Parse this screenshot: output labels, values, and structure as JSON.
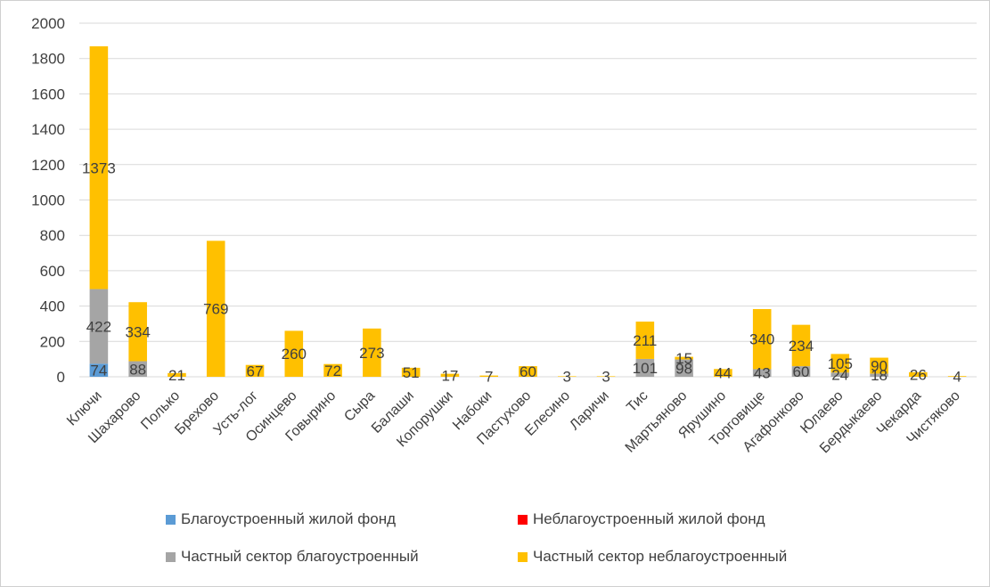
{
  "chart_data": {
    "type": "bar",
    "stacked": true,
    "title": "",
    "xlabel": "",
    "ylabel": "",
    "ylim": [
      0,
      2000
    ],
    "yticks": [
      0,
      200,
      400,
      600,
      800,
      1000,
      1200,
      1400,
      1600,
      1800,
      2000
    ],
    "grid": true,
    "legend_position": "bottom",
    "categories": [
      "Ключи",
      "Шахарово",
      "Полько",
      "Брехово",
      "Усть-лог",
      "Осинцево",
      "Говырино",
      "Сыра",
      "Балаши",
      "Копорушки",
      "Набоки",
      "Пастухово",
      "Елесино",
      "Ларичи",
      "Тис",
      "Мартьяново",
      "Ярушино",
      "Торговище",
      "Агафонково",
      "Юлаево",
      "Бердыкаево",
      "Чекарда",
      "Чистяково"
    ],
    "series": [
      {
        "name": "Благоустроенный жилой фонд",
        "color": "#5b9bd5",
        "values": [
          74,
          null,
          null,
          null,
          null,
          null,
          null,
          null,
          null,
          null,
          null,
          null,
          null,
          null,
          null,
          null,
          null,
          null,
          null,
          null,
          null,
          null,
          null
        ],
        "labels": [
          "74",
          "",
          "",
          "",
          "",
          "",
          "",
          "",
          "",
          "",
          "",
          "",
          "",
          "",
          "",
          "",
          "",
          "",
          "",
          "",
          "",
          "",
          ""
        ]
      },
      {
        "name": "Неблагоустроенный  жилой фонд",
        "color": "#ff0000",
        "values": [
          null,
          null,
          null,
          null,
          null,
          null,
          null,
          null,
          null,
          null,
          null,
          null,
          null,
          null,
          null,
          null,
          null,
          null,
          null,
          null,
          null,
          null,
          null
        ],
        "labels": [
          "",
          "",
          "",
          "",
          "",
          "",
          "",
          "",
          "",
          "",
          "",
          "",
          "",
          "",
          "",
          "",
          "",
          "",
          "",
          "",
          "",
          "",
          ""
        ]
      },
      {
        "name": "Частный сектор благоустроенный",
        "color": "#a5a5a5",
        "values": [
          422,
          88,
          null,
          null,
          null,
          null,
          null,
          null,
          null,
          null,
          null,
          null,
          null,
          null,
          101,
          98,
          null,
          43,
          60,
          24,
          18,
          null,
          null
        ],
        "labels": [
          "422",
          "88",
          "",
          "",
          "",
          "",
          "",
          "",
          "",
          "",
          "",
          "",
          "",
          "",
          "101",
          "98",
          "",
          "43",
          "60",
          "24",
          "18",
          "",
          ""
        ]
      },
      {
        "name": "Частный сектор неблагоустроенный",
        "color": "#ffc000",
        "values": [
          1373,
          334,
          21,
          769,
          67,
          260,
          72,
          273,
          51,
          17,
          7,
          60,
          3,
          3,
          211,
          15,
          44,
          340,
          234,
          105,
          90,
          26,
          4
        ],
        "labels": [
          "1373",
          "334",
          "21",
          "769",
          "67",
          "260",
          "72",
          "273",
          "51",
          "17",
          "7",
          "60",
          "3",
          "3",
          "211",
          "15",
          "44",
          "340",
          "234",
          "105",
          "90",
          "26",
          "4"
        ]
      }
    ]
  }
}
